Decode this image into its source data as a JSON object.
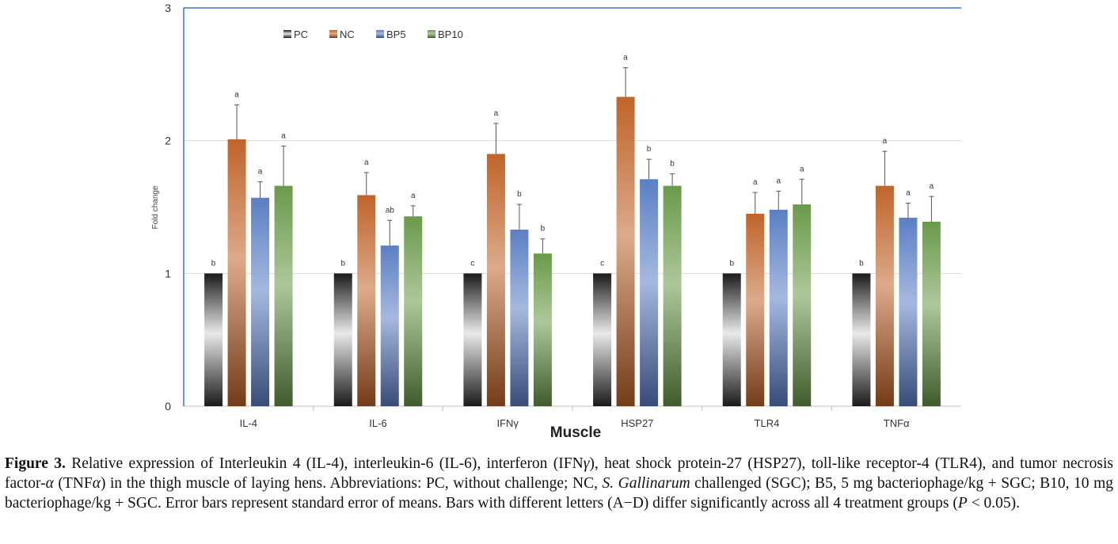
{
  "chart_data": {
    "type": "bar",
    "title": "",
    "xlabel": "Muscle",
    "ylabel": "Fold change",
    "ylim": [
      0,
      3
    ],
    "yticks": [
      "0",
      "1",
      "2",
      "3"
    ],
    "categories": [
      "IL-4",
      "IL-6",
      "IFNγ",
      "HSP27",
      "TLR4",
      "TNFα"
    ],
    "legend_position": "top-left",
    "series": [
      {
        "name": "PC",
        "color": "#1a1a1a",
        "values": [
          1.0,
          1.0,
          1.0,
          1.0,
          1.0,
          1.0
        ],
        "errors": [
          0,
          0,
          0,
          0,
          0,
          0
        ],
        "letters": [
          "b",
          "b",
          "c",
          "c",
          "b",
          "b"
        ]
      },
      {
        "name": "NC",
        "color": "#c0642a",
        "values": [
          2.01,
          1.59,
          1.9,
          2.33,
          1.45,
          1.66
        ],
        "errors": [
          0.26,
          0.17,
          0.23,
          0.22,
          0.16,
          0.26
        ],
        "letters": [
          "a",
          "a",
          "a",
          "a",
          "a",
          "a"
        ]
      },
      {
        "name": "BP5",
        "color": "#5b7fc4",
        "values": [
          1.57,
          1.21,
          1.33,
          1.71,
          1.48,
          1.42
        ],
        "errors": [
          0.12,
          0.19,
          0.19,
          0.15,
          0.14,
          0.11
        ],
        "letters": [
          "a",
          "ab",
          "b",
          "b",
          "a",
          "a"
        ]
      },
      {
        "name": "BP10",
        "color": "#6a9a4a",
        "values": [
          1.66,
          1.43,
          1.15,
          1.66,
          1.52,
          1.39
        ],
        "errors": [
          0.3,
          0.08,
          0.11,
          0.09,
          0.19,
          0.19
        ],
        "letters": [
          "a",
          "a",
          "b",
          "b",
          "a",
          "a"
        ]
      }
    ]
  },
  "caption": {
    "label": "Figure 3.",
    "part1": " Relative expression of Interleukin 4 (IL-4), interleukin-6 (IL-6), interferon (IFN",
    "gamma": "γ",
    "part2": "), heat shock protein-27 (HSP27), toll-like receptor-4 (TLR4), and tumor necrosis factor-",
    "alpha": "α",
    "part3": " (TNF",
    "alpha2": "α",
    "part4": ") in the thigh muscle of laying hens. Abbreviations: PC, without challenge; NC, ",
    "italic": "S. Gallinarum",
    "part5": " challenged (SGC); B5, 5 mg bacteriophage/kg + SGC; B10, 10 mg bacteriophage/kg + SGC. Error bars represent standard error of means. Bars with different letters (A−D) differ significantly across all 4 treatment groups (",
    "p": "P",
    "part6": " < 0.05)."
  }
}
